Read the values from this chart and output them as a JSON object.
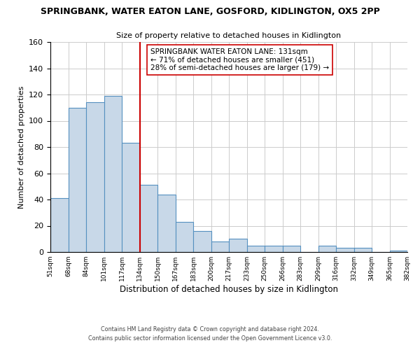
{
  "title1": "SPRINGBANK, WATER EATON LANE, GOSFORD, KIDLINGTON, OX5 2PP",
  "title2": "Size of property relative to detached houses in Kidlington",
  "xlabel": "Distribution of detached houses by size in Kidlington",
  "ylabel": "Number of detached properties",
  "bin_labels": [
    "51sqm",
    "68sqm",
    "84sqm",
    "101sqm",
    "117sqm",
    "134sqm",
    "150sqm",
    "167sqm",
    "183sqm",
    "200sqm",
    "217sqm",
    "233sqm",
    "250sqm",
    "266sqm",
    "283sqm",
    "299sqm",
    "316sqm",
    "332sqm",
    "349sqm",
    "365sqm",
    "382sqm"
  ],
  "bar_heights": [
    41,
    110,
    114,
    119,
    83,
    51,
    44,
    23,
    16,
    8,
    10,
    5,
    5,
    5,
    0,
    5,
    3,
    3,
    0,
    1
  ],
  "bar_color": "#c8d8e8",
  "bar_edge_color": "#5590c0",
  "vline_x_index": 5,
  "vline_color": "#cc0000",
  "annotation_text": "SPRINGBANK WATER EATON LANE: 131sqm\n← 71% of detached houses are smaller (451)\n28% of semi-detached houses are larger (179) →",
  "annotation_box_color": "#ffffff",
  "annotation_box_edge": "#cc0000",
  "ylim": [
    0,
    160
  ],
  "yticks": [
    0,
    20,
    40,
    60,
    80,
    100,
    120,
    140,
    160
  ],
  "footer1": "Contains HM Land Registry data © Crown copyright and database right 2024.",
  "footer2": "Contains public sector information licensed under the Open Government Licence v3.0.",
  "background_color": "#ffffff",
  "grid_color": "#cccccc"
}
